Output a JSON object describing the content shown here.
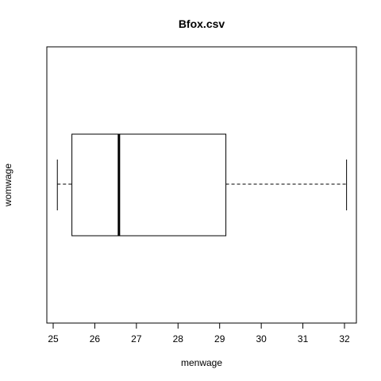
{
  "chart_data": {
    "type": "boxplot",
    "orientation": "horizontal",
    "title": "Bfox.csv",
    "xlabel": "menwage",
    "ylabel": "womwage",
    "xlim": [
      24.9,
      32.3
    ],
    "x_ticks": [
      25,
      26,
      27,
      28,
      29,
      30,
      31,
      32
    ],
    "box": {
      "whisker_low": 25.1,
      "q1": 25.45,
      "median": 26.58,
      "q3": 29.15,
      "whisker_high": 32.05
    },
    "grid": false,
    "legend": false
  },
  "colors": {
    "axes": "#000000",
    "box_fill": "#ffffff",
    "background": "#ffffff"
  }
}
